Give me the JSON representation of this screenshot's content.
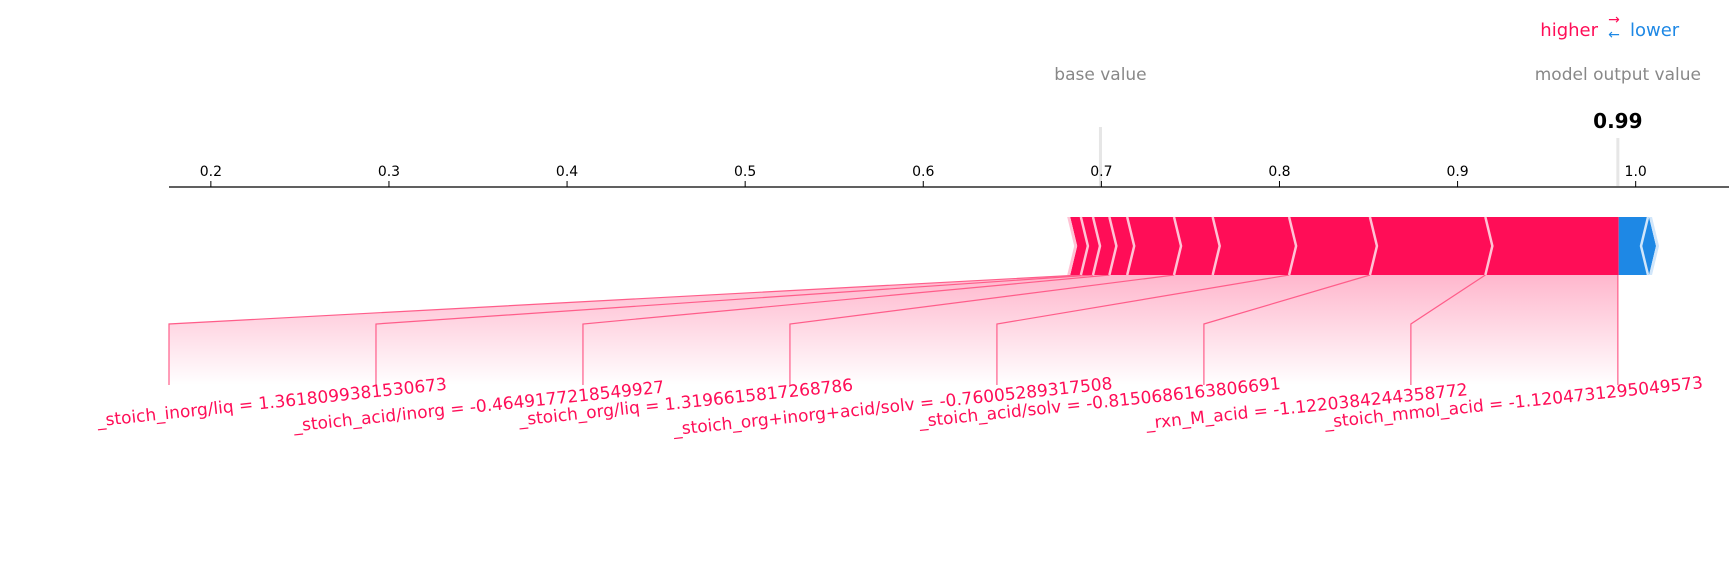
{
  "chart_data": {
    "type": "force",
    "legend": {
      "higher_label": "higher",
      "arrows": "→\n←",
      "lower_label": "lower",
      "higher_color": "#ff0d57",
      "lower_color": "#1e88e5"
    },
    "base_value_label": "base value",
    "output_label": "model output value",
    "output_value": 0.99,
    "output_value_text": "0.99",
    "base_value": 0.6995,
    "xlim": [
      0.1765,
      1.0524
    ],
    "ticks": [
      {
        "value": 0.2,
        "label": "0.2"
      },
      {
        "value": 0.3,
        "label": "0.3"
      },
      {
        "value": 0.4,
        "label": "0.4"
      },
      {
        "value": 0.5,
        "label": "0.5"
      },
      {
        "value": 0.6,
        "label": "0.6"
      },
      {
        "value": 0.7,
        "label": "0.7"
      },
      {
        "value": 0.8,
        "label": "0.8"
      },
      {
        "value": 0.9,
        "label": "0.9"
      },
      {
        "value": 1.0,
        "label": "1.0"
      }
    ],
    "positive_bar": {
      "start": 0.6825,
      "end": 0.9905
    },
    "positive_separators": [
      0.6885,
      0.6953,
      0.7045,
      0.7145,
      0.7408,
      0.7625,
      0.8054,
      0.8508,
      0.9156
    ],
    "negative_bar": {
      "start": 0.9905,
      "end": 1.0075
    },
    "negative_separators": [
      1.003
    ],
    "features": [
      {
        "label": "_stoich_inorg/liq = 1.3618099381530673",
        "bar_value": 0.6885
      },
      {
        "label": "_stoich_acid/inorg = -0.4649177218549927",
        "bar_value": 0.6953
      },
      {
        "label": "_stoich_org/liq = 1.3196615817268786",
        "bar_value": 0.7045
      },
      {
        "label": "_stoich_org+inorg+acid/solv = -0.76005289317508",
        "bar_value": 0.7408
      },
      {
        "label": "_stoich_acid/solv = -0.8150686163806691",
        "bar_value": 0.8054
      },
      {
        "label": "_rxn_M_acid = -1.1220384244358772",
        "bar_value": 0.8508
      },
      {
        "label": "_stoich_mmol_acid = -1.1204731295049573",
        "bar_value": 0.9156
      }
    ]
  }
}
